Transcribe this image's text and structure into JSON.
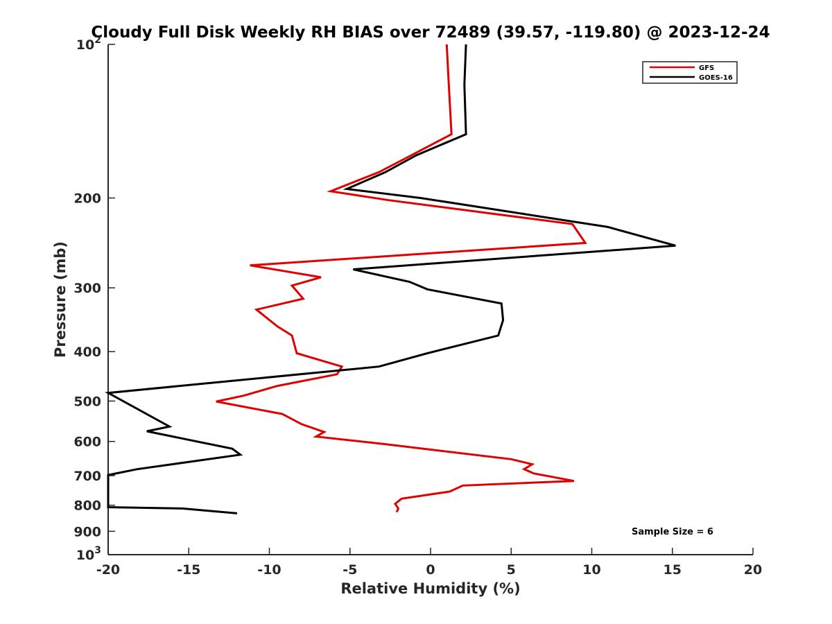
{
  "chart_data": {
    "type": "line",
    "title": "Cloudy Full Disk Weekly RH BIAS over 72489 (39.57, -119.80) @ 2023-12-24",
    "xlabel": "Relative Humidity (%)",
    "ylabel": "Pressure (mb)",
    "xlim": [
      -20,
      20
    ],
    "ylim": [
      100,
      1000
    ],
    "y_scale": "log",
    "y_reversed": true,
    "grid": false,
    "legend_position": "top-right",
    "x_ticks": [
      -20,
      -15,
      -10,
      -5,
      0,
      5,
      10,
      15,
      20
    ],
    "x_tick_labels": [
      "-20",
      "-15",
      "-10",
      "-5",
      "0",
      "5",
      "10",
      "15",
      "20"
    ],
    "y_ticks": [
      100,
      200,
      300,
      400,
      500,
      600,
      700,
      800,
      900,
      1000
    ],
    "y_tick_labels": [
      "10²",
      "200",
      "300",
      "400",
      "500",
      "600",
      "700",
      "800",
      "900",
      "10³"
    ],
    "annotation": "Sample Size = 6",
    "series": [
      {
        "name": "GFS",
        "color": "#e00000",
        "points": [
          [
            1.0,
            100
          ],
          [
            1.1,
            115
          ],
          [
            1.3,
            150
          ],
          [
            -1.2,
            165
          ],
          [
            -3.2,
            178
          ],
          [
            -6.2,
            194
          ],
          [
            -2.6,
            202
          ],
          [
            8.8,
            225
          ],
          [
            9.6,
            245
          ],
          [
            -11.2,
            271
          ],
          [
            -6.8,
            286
          ],
          [
            -8.6,
            297
          ],
          [
            -7.9,
            315
          ],
          [
            -10.8,
            331
          ],
          [
            -9.5,
            357
          ],
          [
            -8.6,
            372
          ],
          [
            -8.3,
            403
          ],
          [
            -5.5,
            428
          ],
          [
            -5.8,
            443
          ],
          [
            -9.5,
            467
          ],
          [
            -11.6,
            488
          ],
          [
            -13.3,
            501
          ],
          [
            -9.2,
            530
          ],
          [
            -8.0,
            555
          ],
          [
            -6.6,
            575
          ],
          [
            -7.1,
            587
          ],
          [
            -2.9,
            607
          ],
          [
            5.0,
            650
          ],
          [
            6.3,
            665
          ],
          [
            5.8,
            680
          ],
          [
            6.4,
            693
          ],
          [
            8.9,
            717
          ],
          [
            2.0,
            732
          ],
          [
            1.2,
            752
          ],
          [
            -1.8,
            777
          ],
          [
            -2.2,
            795
          ],
          [
            -2.0,
            812
          ],
          [
            -2.1,
            825
          ]
        ]
      },
      {
        "name": "GOES-16",
        "color": "#000000",
        "points": [
          [
            2.2,
            100
          ],
          [
            2.1,
            120
          ],
          [
            2.2,
            150
          ],
          [
            -0.9,
            165
          ],
          [
            -2.8,
            178
          ],
          [
            -5.2,
            192
          ],
          [
            -0.6,
            200
          ],
          [
            11.0,
            228
          ],
          [
            15.2,
            248
          ],
          [
            -4.8,
            276
          ],
          [
            -1.3,
            292
          ],
          [
            -0.2,
            302
          ],
          [
            4.4,
            322
          ],
          [
            4.5,
            347
          ],
          [
            4.2,
            372
          ],
          [
            -0.2,
            403
          ],
          [
            -3.2,
            428
          ],
          [
            -20.0,
            482
          ],
          [
            -16.2,
            561
          ],
          [
            -17.6,
            573
          ],
          [
            -12.3,
            620
          ],
          [
            -11.8,
            637
          ],
          [
            -18.2,
            680
          ],
          [
            -20.0,
            698
          ],
          [
            -20.0,
            807
          ],
          [
            -15.4,
            812
          ],
          [
            -12.0,
            830
          ]
        ]
      }
    ]
  }
}
